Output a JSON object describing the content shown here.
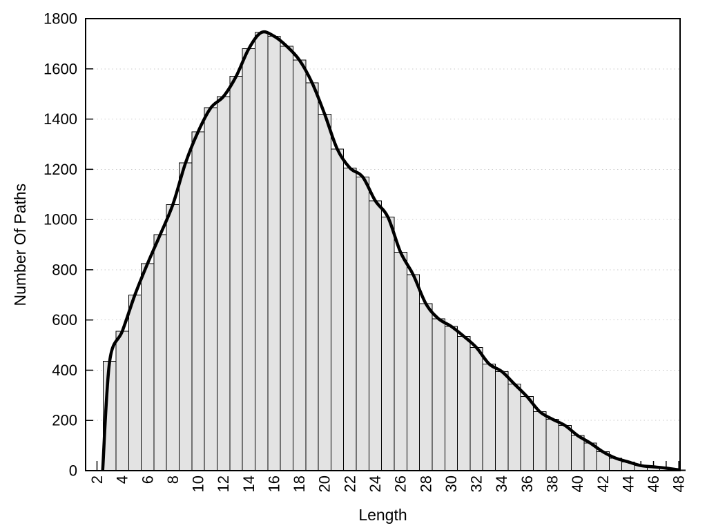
{
  "chart_data": {
    "type": "bar",
    "subtype": "histogram with smooth density curve overlay",
    "title": "",
    "xlabel": "Length",
    "ylabel": "Number Of Paths",
    "categories": [
      3,
      4,
      5,
      6,
      7,
      8,
      9,
      10,
      11,
      12,
      13,
      14,
      15,
      16,
      17,
      18,
      19,
      20,
      21,
      22,
      23,
      24,
      25,
      26,
      27,
      28,
      29,
      30,
      31,
      32,
      33,
      34,
      35,
      36,
      37,
      38,
      39,
      40,
      41,
      42,
      43,
      44,
      45,
      46,
      47,
      48
    ],
    "values": [
      435,
      555,
      700,
      825,
      940,
      1060,
      1225,
      1350,
      1445,
      1490,
      1570,
      1680,
      1745,
      1730,
      1690,
      1635,
      1545,
      1420,
      1280,
      1205,
      1170,
      1075,
      1010,
      870,
      780,
      665,
      605,
      575,
      535,
      490,
      425,
      395,
      345,
      295,
      235,
      205,
      180,
      140,
      110,
      75,
      50,
      35,
      20,
      15,
      10,
      3
    ],
    "series": [
      {
        "name": "paths-histogram",
        "style": "bar",
        "values": [
          435,
          555,
          700,
          825,
          940,
          1060,
          1225,
          1350,
          1445,
          1490,
          1570,
          1680,
          1745,
          1730,
          1690,
          1635,
          1545,
          1420,
          1280,
          1205,
          1170,
          1075,
          1010,
          870,
          780,
          665,
          605,
          575,
          535,
          490,
          425,
          395,
          345,
          295,
          235,
          205,
          180,
          140,
          110,
          75,
          50,
          35,
          20,
          15,
          10,
          3
        ]
      },
      {
        "name": "smooth-density-curve",
        "style": "line",
        "curve_start_x": 2.45,
        "curve_start_y": 0
      }
    ],
    "xticks": [
      2,
      4,
      6,
      8,
      10,
      12,
      14,
      16,
      18,
      20,
      22,
      24,
      26,
      28,
      30,
      32,
      34,
      36,
      38,
      40,
      42,
      44,
      46,
      48
    ],
    "yticks": [
      0,
      200,
      400,
      600,
      800,
      1000,
      1200,
      1400,
      1600,
      1800
    ],
    "xlim": [
      1.1,
      48.1
    ],
    "ylim": [
      0,
      1800
    ],
    "bar_width_units": 1,
    "grid": "horizontal dotted lines at y ticks",
    "legend": "none",
    "x_tick_label_rotation_deg": -90,
    "colors": {
      "background": "#ffffff",
      "bar_fill": "#e3e3e3",
      "bar_stroke": "#000000",
      "curve": "#000000",
      "grid": "#c9c9c9",
      "border": "#000000",
      "text": "#000000"
    }
  }
}
